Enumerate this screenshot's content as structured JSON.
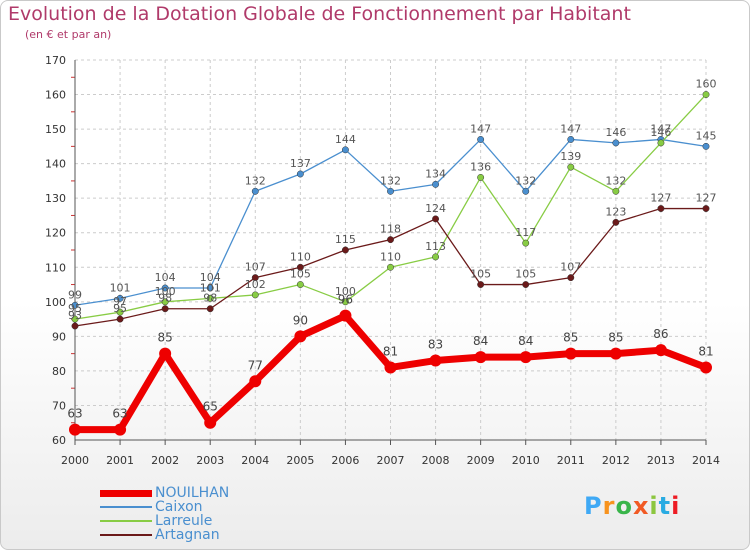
{
  "header": {
    "title": "Evolution de la Dotation Globale de Fonctionnement par Habitant",
    "subtitle": "(en € et par an)"
  },
  "logo": {
    "text": "Proxiti",
    "colors": [
      "#3fa9f5",
      "#f7931e",
      "#39b54a",
      "#f15a24",
      "#8cc63f",
      "#29abe2",
      "#ed1c24"
    ]
  },
  "chart_data": {
    "type": "line",
    "title": "Evolution de la Dotation Globale de Fonctionnement par Habitant",
    "subtitle": "(en € et par an)",
    "x": [
      "2000",
      "2001",
      "2002",
      "2003",
      "2004",
      "2005",
      "2006",
      "2007",
      "2008",
      "2009",
      "2010",
      "2011",
      "2012",
      "2013",
      "2014"
    ],
    "ylim": [
      60,
      170
    ],
    "yticks": [
      60,
      70,
      80,
      90,
      100,
      110,
      120,
      130,
      140,
      150,
      160,
      170
    ],
    "grid": true,
    "legend_position": "bottom-left",
    "series": [
      {
        "name": "NOUILHAN",
        "color": "#ee0000",
        "emphasis": true,
        "values": [
          63,
          63,
          85,
          65,
          77,
          90,
          96,
          81,
          83,
          84,
          84,
          85,
          85,
          86,
          81
        ],
        "labels": [
          "63",
          "63",
          "85",
          "65",
          "77",
          "90",
          "96",
          "81",
          "83",
          "84",
          "84",
          "85",
          "85",
          "86",
          "81"
        ]
      },
      {
        "name": "Caixon",
        "color": "#4a8fcf",
        "values": [
          99,
          101,
          104,
          104,
          132,
          137,
          144,
          132,
          134,
          147,
          132,
          147,
          146,
          147,
          145
        ],
        "labels": [
          "99",
          "101",
          "104",
          "104",
          "132",
          "137",
          "144",
          "132",
          "134",
          "147",
          "132",
          "147",
          "146",
          "147",
          "145"
        ]
      },
      {
        "name": "Larreule",
        "color": "#88cc44",
        "values": [
          95,
          97,
          100,
          101,
          102,
          105,
          100,
          110,
          113,
          136,
          117,
          139,
          132,
          146,
          160
        ],
        "labels": [
          "95",
          "97",
          "100",
          "101",
          "102",
          "105",
          "100",
          "110",
          "113",
          "136",
          "117",
          "139",
          "132",
          "146",
          "160"
        ]
      },
      {
        "name": "Artagnan",
        "color": "#6b1a1a",
        "values": [
          93,
          95,
          98,
          98,
          107,
          110,
          115,
          118,
          124,
          105,
          105,
          107,
          123,
          127,
          127
        ],
        "labels": [
          "93",
          "95",
          "98",
          "98",
          "107",
          "110",
          "115",
          "118",
          "124",
          "105",
          "105",
          "107",
          "123",
          "127",
          "127"
        ]
      }
    ]
  }
}
